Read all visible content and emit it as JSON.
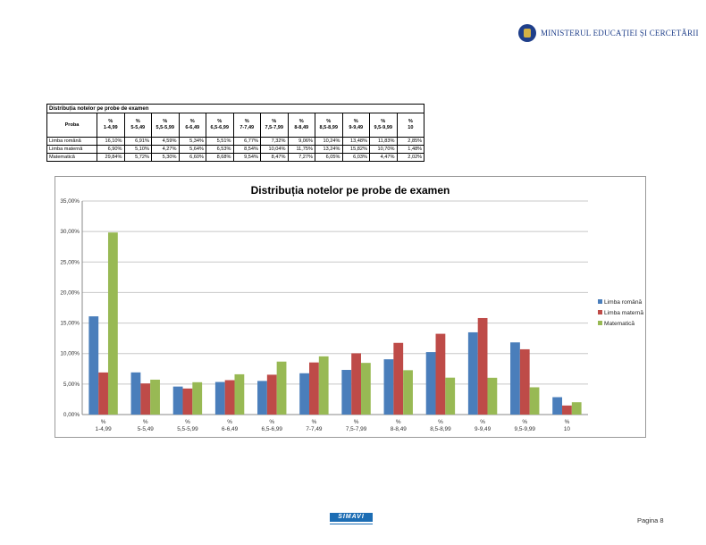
{
  "header": {
    "ministry_name": "MINISTERUL EDUCAȚIEI ȘI CERCETĂRII",
    "logo_icon": "romanian-coat-of-arms"
  },
  "table": {
    "title": "Distribuția notelor pe probe de examen",
    "columns": [
      "Proba",
      "%\n1-4,99",
      "%\n5-5,49",
      "%\n5,5-5,99",
      "%\n6-6,49",
      "%\n6,5-6,99",
      "%\n7-7,49",
      "%\n7,5-7,99",
      "%\n8-8,49",
      "%\n8,5-8,99",
      "%\n9-9,49",
      "%\n9,5-9,99",
      "%\n10"
    ],
    "rows": [
      [
        "Limba română",
        "16,10%",
        "6,91%",
        "4,59%",
        "5,34%",
        "5,51%",
        "6,77%",
        "7,32%",
        "9,06%",
        "10,24%",
        "13,48%",
        "11,83%",
        "2,85%"
      ],
      [
        "Limba maternă",
        "6,90%",
        "5,10%",
        "4,27%",
        "5,64%",
        "6,53%",
        "8,54%",
        "10,04%",
        "11,75%",
        "13,24%",
        "15,82%",
        "10,70%",
        "1,48%"
      ],
      [
        "Matematică",
        "29,84%",
        "5,72%",
        "5,30%",
        "6,60%",
        "8,68%",
        "9,54%",
        "8,47%",
        "7,27%",
        "6,05%",
        "6,03%",
        "4,47%",
        "2,02%"
      ]
    ]
  },
  "chart_data": {
    "type": "bar",
    "title": "Distribuția notelor pe probe de examen",
    "categories": [
      "%\n1-4,99",
      "%\n5-5,49",
      "%\n5,5-5,99",
      "%\n6-6,49",
      "%\n6,5-6,99",
      "%\n7-7,49",
      "%\n7,5-7,99",
      "%\n8-8,49",
      "%\n8,5-8,99",
      "%\n9-9,49",
      "%\n9,5-9,99",
      "%\n10"
    ],
    "series": [
      {
        "name": "Limba română",
        "color": "#4a7ebb",
        "values": [
          16.1,
          6.91,
          4.59,
          5.34,
          5.51,
          6.77,
          7.32,
          9.06,
          10.24,
          13.48,
          11.83,
          2.85
        ]
      },
      {
        "name": "Limba maternă",
        "color": "#be4b48",
        "values": [
          6.9,
          5.1,
          4.27,
          5.64,
          6.53,
          8.54,
          10.04,
          11.75,
          13.24,
          15.82,
          10.7,
          1.48
        ]
      },
      {
        "name": "Matematică",
        "color": "#98b954",
        "values": [
          29.84,
          5.72,
          5.3,
          6.6,
          8.68,
          9.54,
          8.47,
          7.27,
          6.05,
          6.03,
          4.47,
          2.02
        ]
      }
    ],
    "ylim": [
      0,
      35
    ],
    "yticks": [
      "0,00%",
      "5,00%",
      "10,00%",
      "15,00%",
      "20,00%",
      "25,00%",
      "30,00%",
      "35,00%"
    ],
    "grid": true,
    "legend_position": "right"
  },
  "footer": {
    "logo_text": "SIMAVI",
    "page_label": "Pagina 8"
  }
}
